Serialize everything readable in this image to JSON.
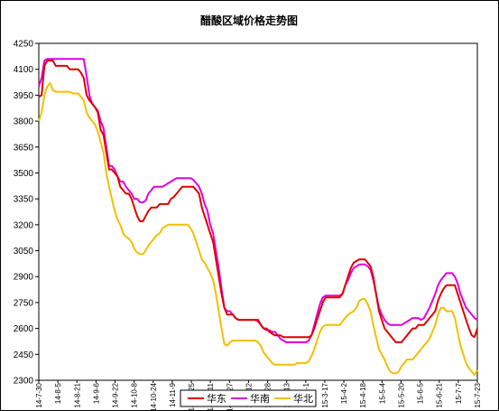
{
  "chart_data": {
    "type": "line",
    "title": "醋酸区域价格走势图",
    "xlabel": "",
    "ylabel": "",
    "ylim": [
      2300,
      4250
    ],
    "yticks": [
      2300,
      2450,
      2600,
      2750,
      2900,
      3050,
      3200,
      3350,
      3500,
      3650,
      3800,
      3950,
      4100,
      4250
    ],
    "grid": false,
    "legend_position": "bottom",
    "x_tick_labels": [
      "14-7-30",
      "14-8-5",
      "14-8-21",
      "14-9-6",
      "14-9-22",
      "14-10-8",
      "14-10-24",
      "14-11-9",
      "14-11-25",
      "14-12-11",
      "14-12-27",
      "15-1-12",
      "15-1-28",
      "15-2-13",
      "15-3-1",
      "15-3-17",
      "15-4-2",
      "15-4-18",
      "15-5-4",
      "15-5-20",
      "15-6-5",
      "15-6-21",
      "15-7-7",
      "15-7-23"
    ],
    "series": [
      {
        "name": "华东",
        "color": "#e00000",
        "values": [
          3940,
          3950,
          4120,
          4150,
          4150,
          4150,
          4120,
          4120,
          4120,
          4120,
          4120,
          4100,
          4100,
          4100,
          4100,
          4080,
          4050,
          3950,
          3920,
          3900,
          3880,
          3850,
          3750,
          3720,
          3620,
          3520,
          3520,
          3500,
          3480,
          3420,
          3400,
          3380,
          3380,
          3350,
          3300,
          3250,
          3220,
          3220,
          3250,
          3280,
          3300,
          3300,
          3300,
          3320,
          3320,
          3320,
          3320,
          3350,
          3360,
          3380,
          3400,
          3420,
          3420,
          3420,
          3420,
          3420,
          3400,
          3380,
          3300,
          3250,
          3200,
          3150,
          3100,
          3000,
          2900,
          2800,
          2720,
          2680,
          2680,
          2680,
          2660,
          2650,
          2650,
          2650,
          2650,
          2650,
          2650,
          2650,
          2650,
          2620,
          2600,
          2600,
          2580,
          2570,
          2560,
          2560,
          2560,
          2550,
          2550,
          2550,
          2550,
          2550,
          2550,
          2550,
          2550,
          2550,
          2550,
          2560,
          2600,
          2650,
          2700,
          2750,
          2780,
          2780,
          2780,
          2780,
          2780,
          2780,
          2800,
          2850,
          2900,
          2950,
          2980,
          2990,
          3000,
          3000,
          3000,
          2980,
          2960,
          2900,
          2800,
          2700,
          2650,
          2600,
          2580,
          2560,
          2540,
          2520,
          2520,
          2520,
          2540,
          2560,
          2580,
          2600,
          2600,
          2620,
          2620,
          2620,
          2640,
          2660,
          2680,
          2700,
          2760,
          2800,
          2830,
          2850,
          2850,
          2850,
          2850,
          2800,
          2750,
          2700,
          2650,
          2600,
          2560,
          2550,
          2600
        ]
      },
      {
        "name": "华南",
        "color": "#e000e0",
        "values": [
          4000,
          4050,
          4150,
          4160,
          4160,
          4160,
          4160,
          4160,
          4160,
          4160,
          4160,
          4160,
          4160,
          4160,
          4160,
          4160,
          4160,
          4060,
          3950,
          3900,
          3880,
          3860,
          3800,
          3760,
          3650,
          3540,
          3540,
          3520,
          3480,
          3450,
          3450,
          3420,
          3400,
          3380,
          3350,
          3350,
          3330,
          3330,
          3340,
          3380,
          3400,
          3420,
          3420,
          3420,
          3420,
          3430,
          3440,
          3450,
          3460,
          3470,
          3470,
          3470,
          3470,
          3470,
          3470,
          3460,
          3440,
          3420,
          3380,
          3320,
          3280,
          3200,
          3150,
          3050,
          2950,
          2830,
          2720,
          2700,
          2700,
          2680,
          2660,
          2650,
          2650,
          2650,
          2650,
          2650,
          2650,
          2650,
          2640,
          2620,
          2600,
          2590,
          2590,
          2580,
          2580,
          2560,
          2540,
          2530,
          2520,
          2520,
          2520,
          2520,
          2520,
          2520,
          2520,
          2520,
          2530,
          2560,
          2620,
          2680,
          2740,
          2780,
          2790,
          2790,
          2790,
          2790,
          2790,
          2790,
          2800,
          2850,
          2880,
          2920,
          2950,
          2960,
          2970,
          2970,
          2970,
          2960,
          2940,
          2880,
          2800,
          2720,
          2680,
          2650,
          2630,
          2620,
          2620,
          2620,
          2620,
          2620,
          2630,
          2640,
          2650,
          2660,
          2660,
          2660,
          2650,
          2660,
          2690,
          2720,
          2760,
          2800,
          2850,
          2880,
          2900,
          2920,
          2920,
          2920,
          2900,
          2860,
          2800,
          2760,
          2720,
          2700,
          2680,
          2660,
          2650
        ]
      },
      {
        "name": "华北",
        "color": "#f0c000",
        "values": [
          3800,
          3850,
          3950,
          4000,
          4020,
          3980,
          3970,
          3970,
          3970,
          3970,
          3970,
          3970,
          3960,
          3960,
          3960,
          3940,
          3920,
          3850,
          3820,
          3800,
          3780,
          3740,
          3680,
          3620,
          3500,
          3420,
          3350,
          3280,
          3230,
          3200,
          3150,
          3130,
          3120,
          3100,
          3060,
          3040,
          3030,
          3030,
          3050,
          3080,
          3100,
          3120,
          3140,
          3150,
          3180,
          3190,
          3200,
          3200,
          3200,
          3200,
          3200,
          3200,
          3200,
          3200,
          3180,
          3150,
          3100,
          3050,
          3000,
          2980,
          2950,
          2920,
          2880,
          2800,
          2700,
          2600,
          2510,
          2500,
          2520,
          2530,
          2530,
          2530,
          2530,
          2530,
          2530,
          2530,
          2530,
          2530,
          2520,
          2500,
          2460,
          2440,
          2420,
          2400,
          2390,
          2390,
          2390,
          2390,
          2390,
          2390,
          2390,
          2390,
          2400,
          2400,
          2400,
          2400,
          2410,
          2440,
          2480,
          2530,
          2580,
          2610,
          2620,
          2620,
          2620,
          2620,
          2620,
          2620,
          2640,
          2660,
          2680,
          2690,
          2700,
          2720,
          2760,
          2770,
          2770,
          2740,
          2700,
          2620,
          2550,
          2480,
          2450,
          2420,
          2380,
          2350,
          2340,
          2340,
          2350,
          2380,
          2400,
          2420,
          2420,
          2420,
          2440,
          2460,
          2480,
          2500,
          2520,
          2540,
          2580,
          2620,
          2680,
          2720,
          2720,
          2700,
          2700,
          2700,
          2660,
          2580,
          2500,
          2450,
          2400,
          2370,
          2350,
          2330,
          2360
        ]
      }
    ]
  }
}
